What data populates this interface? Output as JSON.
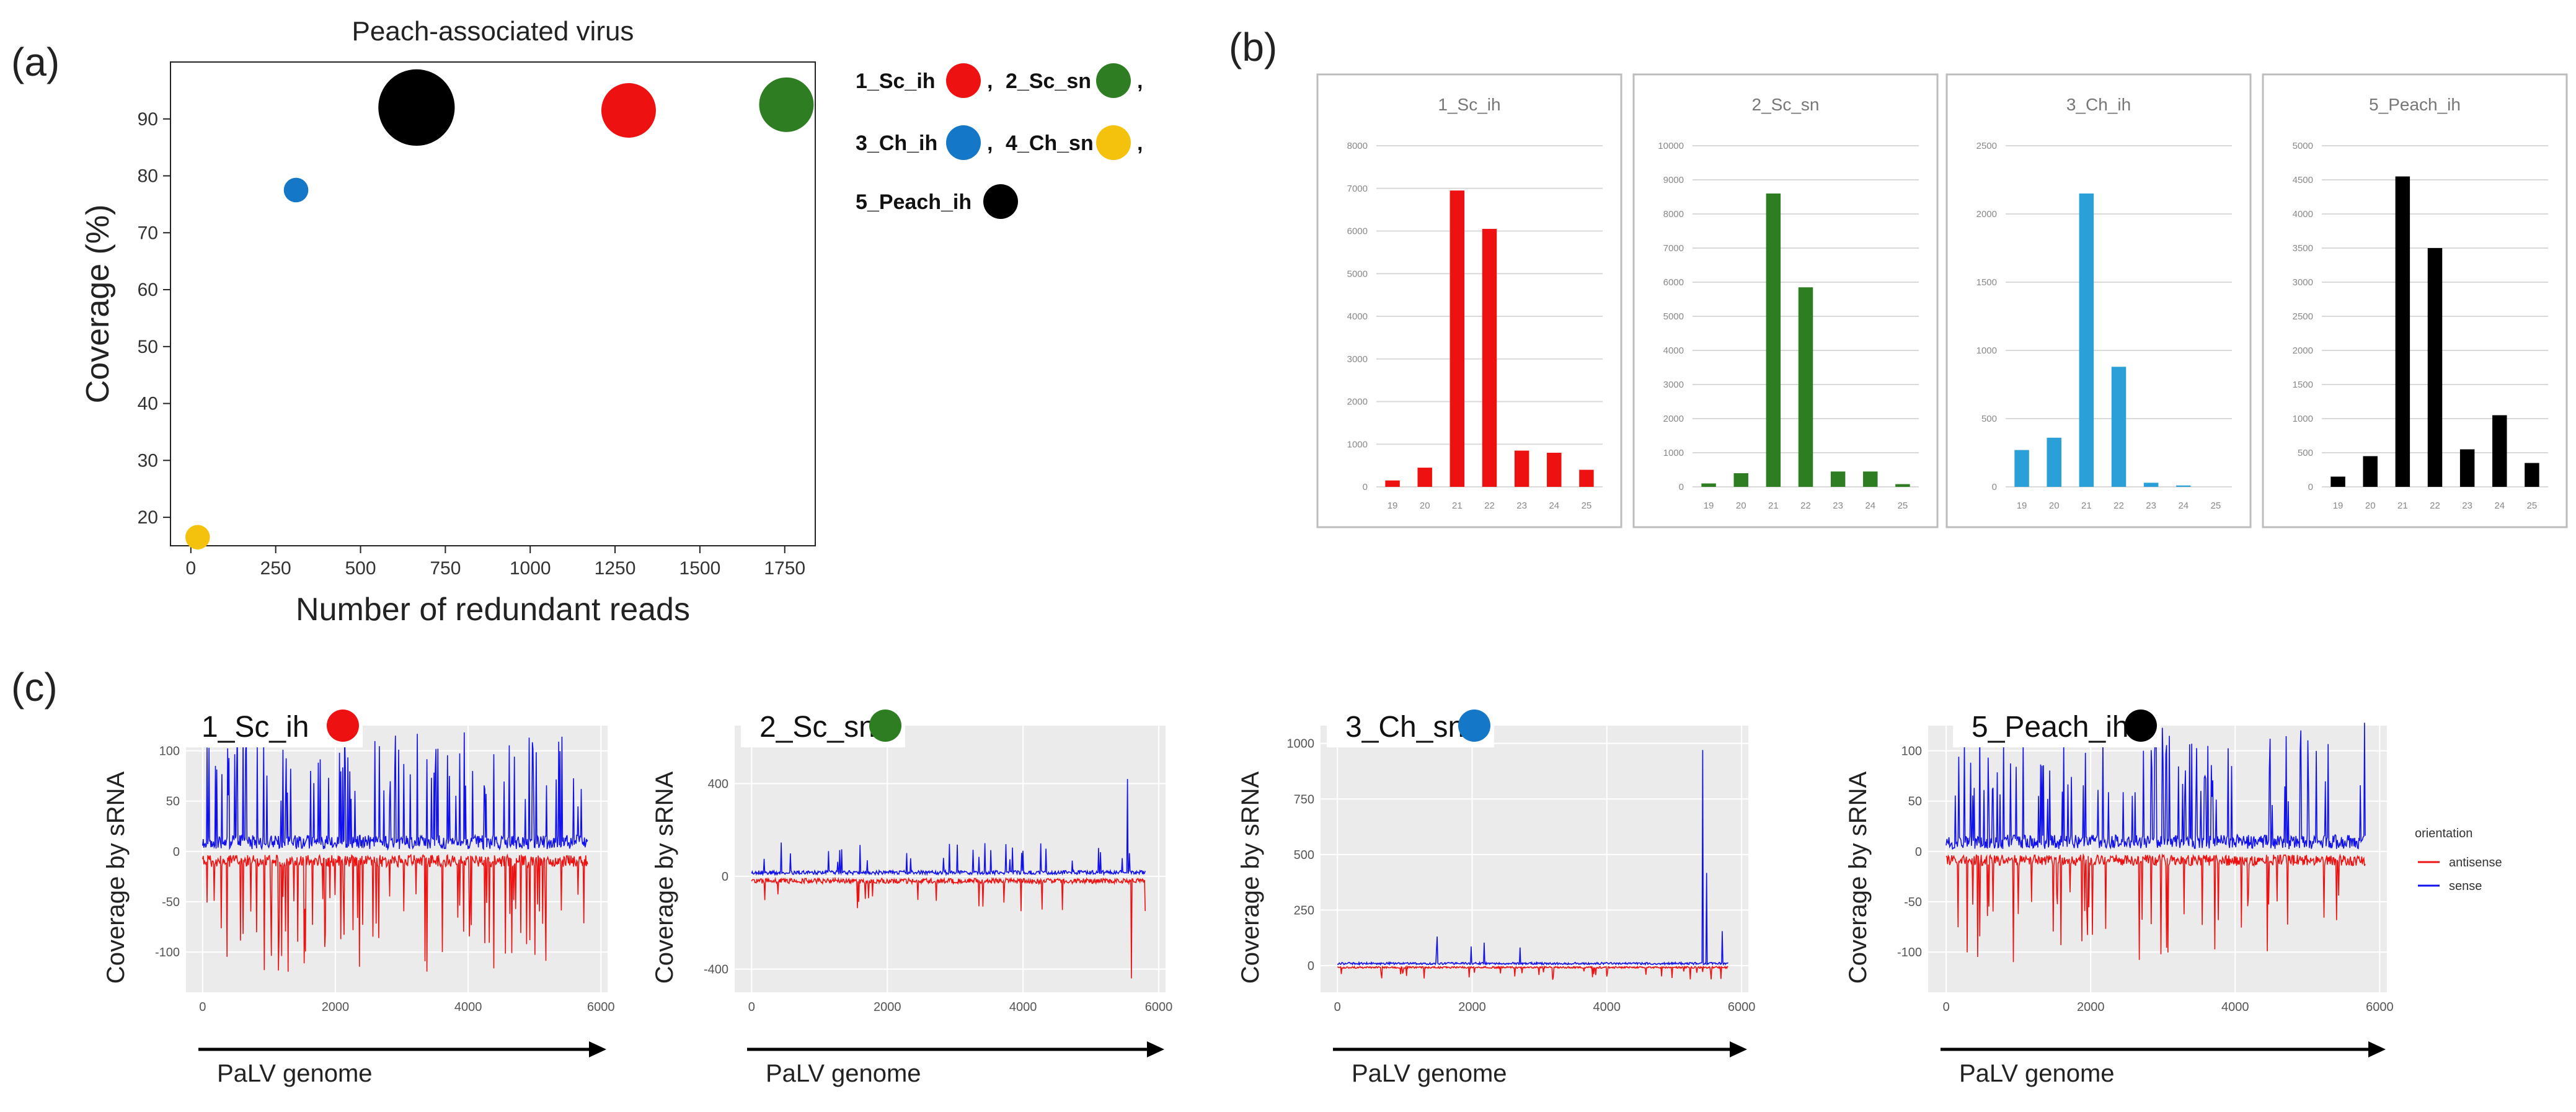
{
  "panel_labels": {
    "a": "(a)",
    "b": "(b)",
    "c": "(c)"
  },
  "colors": {
    "sc_ih": "#ee1111",
    "sc_sn": "#2e7d22",
    "ch_ih": "#1577c8",
    "ch_sn": "#f4c20d",
    "peach_ih": "#000000",
    "bar_ch_ih": "#2a9fd8",
    "sense": "#1111ee",
    "antisense": "#ee1111"
  },
  "chart_data": [
    {
      "id": "a",
      "type": "scatter",
      "title": "Peach-associated virus",
      "xlabel": "Number of redundant reads",
      "ylabel": "Coverage (%)",
      "xlim": [
        -60,
        1840
      ],
      "ylim": [
        15,
        100
      ],
      "xticks": [
        0,
        250,
        500,
        750,
        1000,
        1250,
        1500,
        1750
      ],
      "yticks": [
        20,
        30,
        40,
        50,
        60,
        70,
        80,
        90
      ],
      "points": [
        {
          "label": "1_Sc_ih",
          "x": 1290,
          "y": 91.5,
          "size": 2.0,
          "color": "#ee1111"
        },
        {
          "label": "2_Sc_sn",
          "x": 1755,
          "y": 92.5,
          "size": 2.0,
          "color": "#2e7d22"
        },
        {
          "label": "3_Ch_ih",
          "x": 310,
          "y": 77.5,
          "size": 0.9,
          "color": "#1577c8"
        },
        {
          "label": "4_Ch_sn",
          "x": 20,
          "y": 16.5,
          "size": 0.9,
          "color": "#f4c20d"
        },
        {
          "label": "5_Peach_ih",
          "x": 665,
          "y": 92,
          "size": 2.8,
          "color": "#000000"
        }
      ],
      "legend": {
        "items": [
          "1_Sc_ih",
          "2_Sc_sn",
          "3_Ch_ih",
          "4_Ch_sn",
          "5_Peach_ih"
        ],
        "separators": [
          ", ",
          ",",
          ", ",
          ","
        ]
      }
    },
    {
      "id": "b1",
      "type": "bar",
      "title": "1_Sc_ih",
      "color": "#ee1111",
      "categories": [
        "19",
        "20",
        "21",
        "22",
        "23",
        "24",
        "25"
      ],
      "values": [
        150,
        450,
        6950,
        6050,
        850,
        800,
        400
      ],
      "ylim": [
        0,
        8000
      ],
      "yticks": [
        "0",
        "1000",
        "2000",
        "3000",
        "4000",
        "5000",
        "6000",
        "7000",
        "8000"
      ]
    },
    {
      "id": "b2",
      "type": "bar",
      "title": "2_Sc_sn",
      "color": "#2e7d22",
      "categories": [
        "19",
        "20",
        "21",
        "22",
        "23",
        "24",
        "25"
      ],
      "values": [
        100,
        400,
        8600,
        5850,
        450,
        450,
        80
      ],
      "ylim": [
        0,
        10000
      ],
      "yticks": [
        "0",
        "1000",
        "2000",
        "3000",
        "4000",
        "5000",
        "6000",
        "7000",
        "8000",
        "9000",
        "10000"
      ]
    },
    {
      "id": "b3",
      "type": "bar",
      "title": "3_Ch_ih",
      "color": "#2a9fd8",
      "categories": [
        "19",
        "20",
        "21",
        "22",
        "23",
        "24",
        "25"
      ],
      "values": [
        270,
        360,
        2150,
        880,
        30,
        10,
        0
      ],
      "ylim": [
        0,
        2500
      ],
      "yticks": [
        "0",
        "500",
        "1000",
        "1500",
        "2000",
        "2500"
      ]
    },
    {
      "id": "b4",
      "type": "bar",
      "title": "5_Peach_ih",
      "color": "#000000",
      "categories": [
        "19",
        "20",
        "21",
        "22",
        "23",
        "24",
        "25"
      ],
      "values": [
        150,
        450,
        4550,
        3500,
        550,
        1050,
        350
      ],
      "ylim": [
        0,
        5000
      ],
      "yticks": [
        "0",
        "500",
        "1000",
        "1500",
        "2000",
        "2500",
        "3000",
        "3500",
        "4000",
        "4500",
        "5000"
      ]
    },
    {
      "id": "c1",
      "type": "line",
      "name": "1_Sc_ih",
      "dot_color": "#ee1111",
      "ylabel": "Coverage by sRNA",
      "xlabel": "PaLV genome",
      "xlim": [
        -250,
        6100
      ],
      "ylim": [
        -140,
        125
      ],
      "xticks": [
        "0",
        "2000",
        "4000",
        "6000"
      ],
      "yticks": [
        "100",
        "50",
        "0",
        "-50",
        "-100"
      ],
      "series": [
        {
          "name": "sense",
          "max": 115
        },
        {
          "name": "antisense",
          "min": -118
        }
      ]
    },
    {
      "id": "c2",
      "type": "line",
      "name": "2_Sc_sn",
      "dot_color": "#2e7d22",
      "ylabel": "Coverage by sRNA",
      "xlabel": "PaLV genome",
      "xlim": [
        -250,
        6100
      ],
      "ylim": [
        -500,
        650
      ],
      "xticks": [
        "0",
        "2000",
        "4000",
        "6000"
      ],
      "yticks": [
        "400",
        "0",
        "-400"
      ],
      "series": [
        {
          "name": "sense",
          "max": 420
        },
        {
          "name": "antisense",
          "min": -440
        }
      ]
    },
    {
      "id": "c3",
      "type": "line",
      "name": "3_Ch_sn",
      "dot_color": "#1577c8",
      "ylabel": "Coverage by sRNA",
      "xlabel": "PaLV genome",
      "xlim": [
        -250,
        6100
      ],
      "ylim": [
        -120,
        1080
      ],
      "xticks": [
        "0",
        "2000",
        "4000",
        "6000"
      ],
      "yticks": [
        "1000",
        "750",
        "500",
        "250",
        "0"
      ],
      "series": [
        {
          "name": "sense",
          "max": 970
        },
        {
          "name": "antisense",
          "min": -80
        }
      ]
    },
    {
      "id": "c4",
      "type": "line",
      "name": "5_Peach_ih",
      "dot_color": "#000000",
      "ylabel": "Coverage by sRNA",
      "xlabel": "PaLV genome",
      "xlim": [
        -250,
        6100
      ],
      "ylim": [
        -140,
        125
      ],
      "xticks": [
        "0",
        "2000",
        "4000",
        "6000"
      ],
      "yticks": [
        "100",
        "50",
        "0",
        "-50",
        "-100"
      ],
      "series": [
        {
          "name": "sense",
          "max": 118
        },
        {
          "name": "antisense",
          "min": -110
        }
      ],
      "legend": {
        "title": "orientation",
        "items": [
          "antisense",
          "sense"
        ]
      }
    }
  ]
}
